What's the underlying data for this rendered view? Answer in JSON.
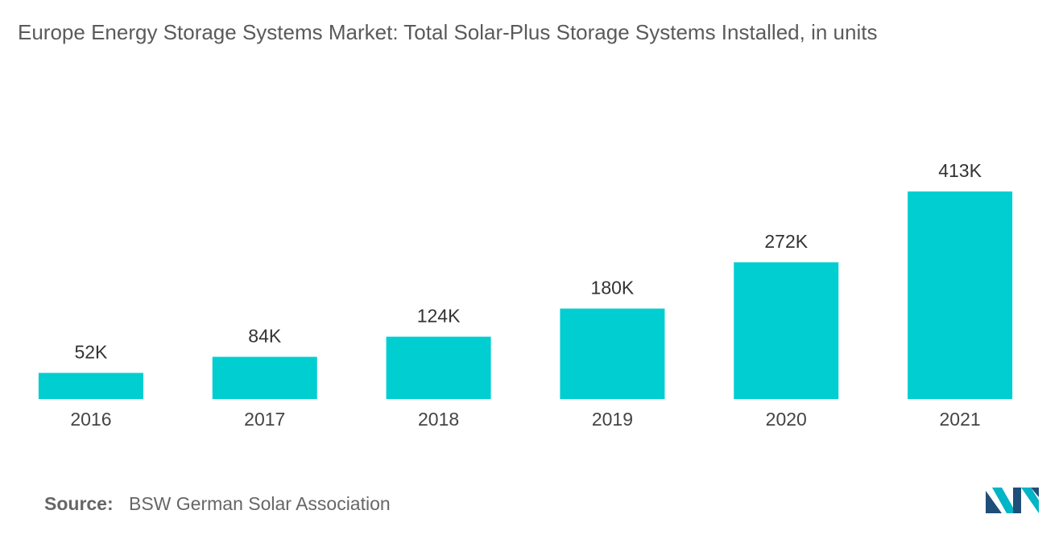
{
  "chart_data": {
    "type": "bar",
    "title": "Europe Energy Storage Systems Market: Total Solar-Plus Storage Systems Installed, in units",
    "categories": [
      "2016",
      "2017",
      "2018",
      "2019",
      "2020",
      "2021"
    ],
    "values": [
      52000,
      84000,
      124000,
      180000,
      272000,
      413000
    ],
    "value_labels": [
      "52K",
      "84K",
      "124K",
      "180K",
      "272K",
      "413K"
    ],
    "color": "#00ced1",
    "source_label": "Source:",
    "source": "BSW German Solar Association"
  }
}
